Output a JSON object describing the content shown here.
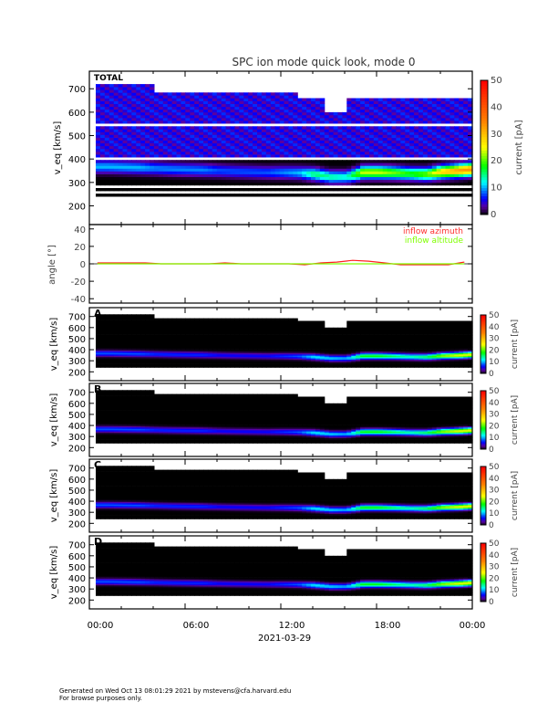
{
  "footer": {
    "line1": "Generated on Wed Oct 13 08:01:29 2021 by mstevens@cfa.harvard.edu",
    "line2": "For browse purposes only."
  },
  "chart_data": {
    "title": "SPC ion mode quick look, mode 0",
    "type": "heatmap",
    "xlabel": "2021-03-29",
    "x_tick_labels": [
      "00:00",
      "06:00",
      "12:00",
      "18:00",
      "00:00"
    ],
    "x_range_hours": [
      0,
      24
    ],
    "colorbar": {
      "label": "current [pA]",
      "range": [
        0,
        50
      ],
      "ticks": [
        0,
        10,
        20,
        30,
        40,
        50
      ],
      "colormap": [
        "#000000",
        "#5a00a0",
        "#0000ff",
        "#00ffff",
        "#00ff00",
        "#ffff00",
        "#ff8000",
        "#ff0000"
      ]
    },
    "panels": [
      {
        "label": "TOTAL",
        "ylabel": "v_eq [km/s]",
        "ylabel_main": "v",
        "ylabel_sub": "eq",
        "ylabel_unit": "[km/s]",
        "ylim": [
          120,
          775
        ],
        "yticks": [
          200,
          300,
          400,
          500,
          600,
          700
        ]
      },
      {
        "label": "",
        "type": "line",
        "ylabel": "angle [°]",
        "ylim": [
          -45,
          45
        ],
        "yticks": [
          -40,
          -20,
          0,
          20,
          40
        ],
        "series": [
          {
            "name": "inflow azimuth",
            "color": "#ff2020"
          },
          {
            "name": "inflow altitude",
            "color": "#80ff00"
          }
        ]
      },
      {
        "label": "A",
        "ylabel": "v_eq [km/s]",
        "ylim": [
          120,
          780
        ],
        "yticks": [
          200,
          300,
          400,
          500,
          600,
          700
        ]
      },
      {
        "label": "B",
        "ylabel": "v_eq [km/s]",
        "ylim": [
          120,
          780
        ],
        "yticks": [
          200,
          300,
          400,
          500,
          600,
          700
        ]
      },
      {
        "label": "C",
        "ylabel": "v_eq [km/s]",
        "ylim": [
          120,
          780
        ],
        "yticks": [
          200,
          300,
          400,
          500,
          600,
          700
        ]
      },
      {
        "label": "D",
        "ylabel": "v_eq [km/s]",
        "ylim": [
          120,
          780
        ],
        "yticks": [
          200,
          300,
          400,
          500,
          600,
          700
        ]
      }
    ],
    "hours": [
      1,
      2,
      3,
      4,
      5,
      6,
      7,
      8,
      9,
      10,
      11,
      12,
      13,
      14,
      15,
      16,
      17,
      18,
      19,
      20,
      21,
      22,
      23,
      24
    ],
    "peak_velocity_kms": [
      362,
      360,
      358,
      355,
      352,
      350,
      348,
      345,
      342,
      340,
      338,
      338,
      336,
      330,
      318,
      318,
      338,
      338,
      336,
      332,
      330,
      340,
      345,
      352
    ],
    "peak_current_pA": [
      8,
      8,
      8,
      7,
      7,
      7,
      7,
      6,
      6,
      6,
      6,
      7,
      8,
      12,
      11,
      10,
      18,
      18,
      16,
      14,
      16,
      22,
      25,
      26
    ],
    "azimuth_deg": [
      1,
      1,
      1,
      1,
      0,
      0,
      0,
      0,
      1,
      0,
      0,
      0,
      0,
      -1,
      1,
      2,
      4,
      3,
      1,
      -1,
      -1,
      -1,
      -1,
      2
    ],
    "altitude_deg": [
      0,
      0,
      0,
      0,
      0,
      0,
      0,
      0,
      0,
      0,
      0,
      0,
      0,
      0,
      0,
      0,
      0,
      0,
      0,
      0,
      0,
      0,
      0,
      0
    ]
  }
}
